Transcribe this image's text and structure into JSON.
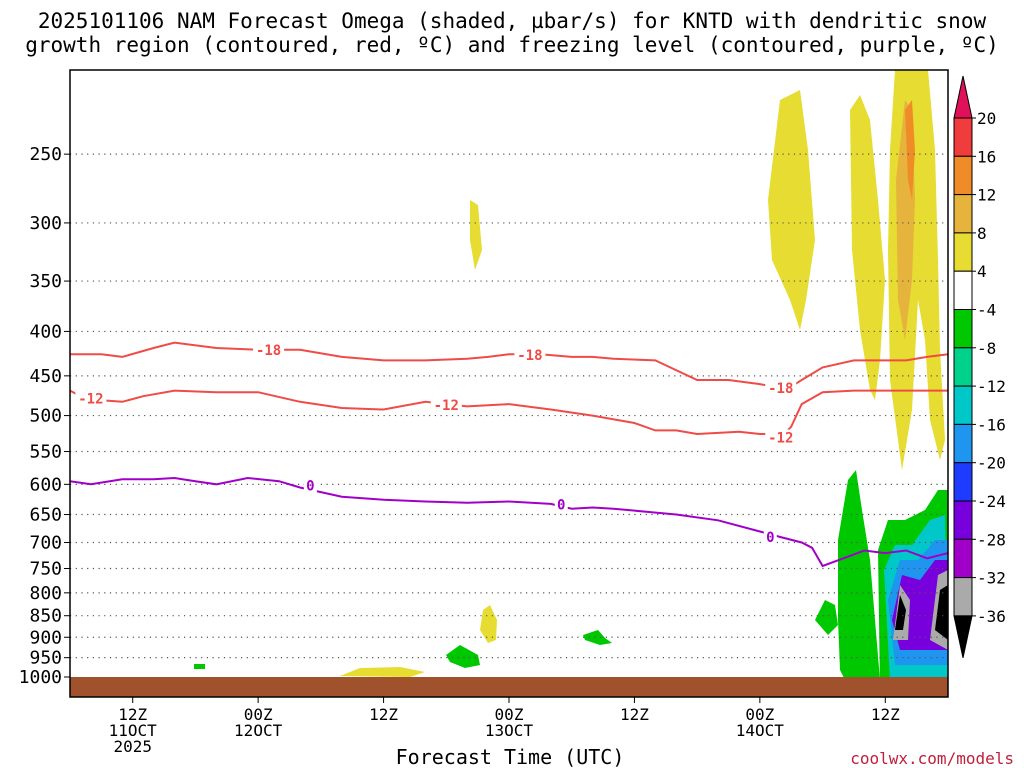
{
  "chart_data": {
    "type": "heatmap",
    "title_line1": "2025101106 NAM Forecast Omega (shaded, µbar/s) for KNTD with dendritic snow",
    "title_line2": "growth region (contoured, red, ºC) and freezing level (contoured, purple, ºC)",
    "xlabel": "Forecast Time (UTC)",
    "watermark": "coolwx.com/models",
    "ylim": [
      1000,
      200
    ],
    "y_ticks": [
      250,
      300,
      350,
      400,
      450,
      500,
      550,
      600,
      650,
      700,
      750,
      800,
      850,
      900,
      950,
      1000
    ],
    "x_ticks": [
      {
        "h": 6,
        "l1": "12Z",
        "l2": "11OCT",
        "l3": "2025"
      },
      {
        "h": 18,
        "l1": "00Z",
        "l2": "12OCT",
        "l3": ""
      },
      {
        "h": 30,
        "l1": "12Z",
        "l2": "",
        "l3": ""
      },
      {
        "h": 42,
        "l1": "00Z",
        "l2": "13OCT",
        "l3": ""
      },
      {
        "h": 54,
        "l1": "12Z",
        "l2": "",
        "l3": ""
      },
      {
        "h": 66,
        "l1": "00Z",
        "l2": "14OCT",
        "l3": ""
      },
      {
        "h": 78,
        "l1": "12Z",
        "l2": "",
        "l3": ""
      }
    ],
    "colorbar": {
      "labels": [
        "20",
        "16",
        "12",
        "8",
        "4",
        "-4",
        "-8",
        "-12",
        "-16",
        "-20",
        "-24",
        "-28",
        "-32",
        "-36"
      ],
      "colors": [
        "#e0105a",
        "#f03c3c",
        "#f08c28",
        "#e6b43c",
        "#e6dc32",
        "#ffffff",
        "#00c800",
        "#00d28c",
        "#00c8c8",
        "#1e96f0",
        "#1e3cff",
        "#7800dc",
        "#a000c8",
        "#aaaaaa",
        "#000000"
      ]
    },
    "series": [
      {
        "name": "-18 °C",
        "color": "#f04b46",
        "label": "-18",
        "x": [
          0,
          3,
          5,
          8,
          10,
          14,
          18,
          22,
          26,
          30,
          34,
          38,
          40,
          42,
          45,
          48,
          50,
          52,
          56,
          60,
          63,
          66,
          68,
          69,
          70,
          72,
          75,
          78,
          80,
          82,
          84
        ],
        "y": [
          425,
          425,
          428,
          418,
          412,
          418,
          420,
          420,
          428,
          432,
          432,
          430,
          428,
          425,
          425,
          428,
          428,
          430,
          432,
          455,
          455,
          460,
          465,
          463,
          455,
          440,
          432,
          432,
          432,
          428,
          425
        ],
        "labels_at": [
          {
            "x": 19,
            "y": 420
          },
          {
            "x": 44,
            "y": 426
          },
          {
            "x": 68,
            "y": 465
          }
        ]
      },
      {
        "name": "-12 °C",
        "color": "#f04b46",
        "label": "-12",
        "x": [
          0,
          1,
          3,
          5,
          7,
          10,
          14,
          18,
          22,
          26,
          30,
          34,
          38,
          42,
          46,
          50,
          54,
          56,
          58,
          60,
          64,
          66,
          67,
          68,
          69,
          70,
          72,
          75,
          78,
          80,
          82,
          84
        ],
        "y": [
          468,
          475,
          480,
          482,
          475,
          468,
          470,
          470,
          482,
          490,
          492,
          482,
          488,
          485,
          492,
          500,
          510,
          520,
          520,
          525,
          522,
          525,
          525,
          530,
          515,
          485,
          470,
          468,
          468,
          468,
          468,
          468
        ],
        "labels_at": [
          {
            "x": 2,
            "y": 478
          },
          {
            "x": 36,
            "y": 486
          },
          {
            "x": 68,
            "y": 530
          }
        ]
      },
      {
        "name": "0 °C freezing level",
        "color": "#a000c8",
        "label": "0",
        "x": [
          0,
          2,
          5,
          8,
          10,
          12,
          14,
          17,
          20,
          22,
          26,
          30,
          34,
          38,
          42,
          46,
          48,
          50,
          52,
          55,
          58,
          62,
          66,
          68,
          70,
          71,
          72,
          74,
          76,
          78,
          80,
          82,
          84
        ],
        "y": [
          595,
          600,
          592,
          592,
          590,
          595,
          600,
          590,
          595,
          605,
          620,
          625,
          628,
          630,
          628,
          632,
          640,
          638,
          640,
          645,
          650,
          660,
          680,
          690,
          700,
          710,
          745,
          730,
          715,
          720,
          715,
          730,
          720
        ],
        "labels_at": [
          {
            "x": 23,
            "y": 602
          },
          {
            "x": 47,
            "y": 633
          },
          {
            "x": 67,
            "y": 690
          }
        ]
      }
    ]
  }
}
